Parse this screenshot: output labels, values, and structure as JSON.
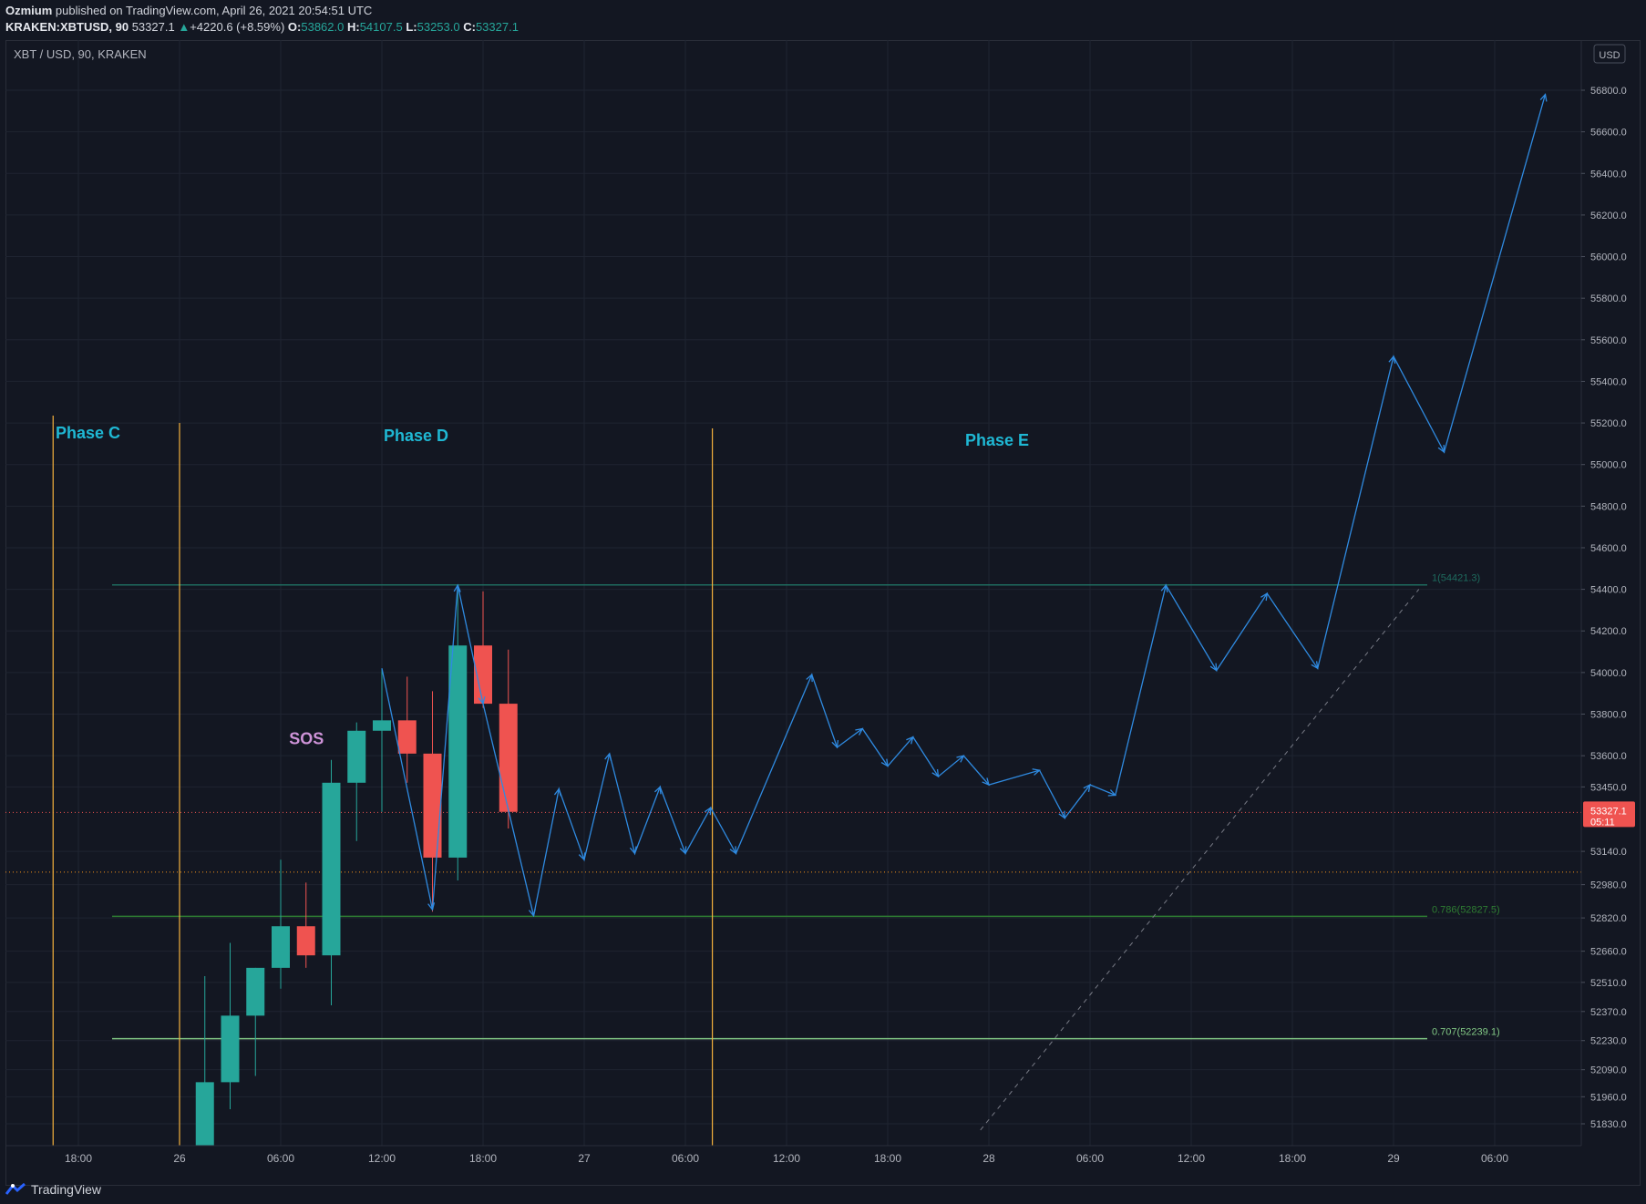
{
  "header": {
    "author": "Ozmium",
    "published_text": "published on TradingView.com, April 26, 2021 20:54:51 UTC",
    "symbol": "KRAKEN:XBTUSD, 90",
    "last": "53327.1",
    "change_arrow": "▲",
    "change": "+4220.6 (+8.59%)",
    "o_label": "O:",
    "o_value": "53862.0",
    "h_label": "H:",
    "h_value": "54107.5",
    "l_label": "L:",
    "l_value": "53253.0",
    "c_label": "C:",
    "c_value": "53327.1"
  },
  "footer": {
    "brand": "TradingView",
    "logo_icon": "tradingview-logo-icon"
  },
  "colors": {
    "background": "#131722",
    "grid": "#1f2431",
    "up": "#26a69a",
    "down": "#ef5350",
    "projection": "#2f8ae0",
    "phase_line": "#f5b13d",
    "phase_text": "#1fb8d4",
    "sos_text": "#ce93d8",
    "fib_1": "#1e6b5e",
    "fib_786": "#2e7d32",
    "fib_707": "#81c784",
    "price_tag": "#ef5350",
    "axis_text": "#b2b5be"
  },
  "chart_data": {
    "type": "candlestick",
    "title": "XBT / USD, 90, KRAKEN",
    "currency": "USD",
    "y_axis_ticks": [
      "56800.0",
      "56600.0",
      "56400.0",
      "56200.0",
      "56000.0",
      "55800.0",
      "55600.0",
      "55400.0",
      "55200.0",
      "55000.0",
      "54800.0",
      "54600.0",
      "54400.0",
      "54200.0",
      "54000.0",
      "53800.0",
      "53600.0",
      "53450.0",
      "53140.0",
      "52980.0",
      "52820.0",
      "52660.0",
      "52510.0",
      "52370.0",
      "52230.0",
      "52090.0",
      "51960.0",
      "51830.0"
    ],
    "x_axis_ticks": [
      {
        "label": "18:00",
        "t": -6
      },
      {
        "label": "26",
        "t": 0
      },
      {
        "label": "06:00",
        "t": 6
      },
      {
        "label": "12:00",
        "t": 12
      },
      {
        "label": "18:00",
        "t": 18
      },
      {
        "label": "27",
        "t": 24
      },
      {
        "label": "06:00",
        "t": 30
      },
      {
        "label": "12:00",
        "t": 36
      },
      {
        "label": "18:00",
        "t": 42
      },
      {
        "label": "28",
        "t": 48
      },
      {
        "label": "06:00",
        "t": 54
      },
      {
        "label": "12:00",
        "t": 60
      },
      {
        "label": "18:00",
        "t": 66
      },
      {
        "label": "29",
        "t": 72
      },
      {
        "label": "06:00",
        "t": 78
      }
    ],
    "candles": [
      {
        "t": 1.5,
        "o": 51650,
        "h": 52540,
        "l": 51600,
        "c": 52030
      },
      {
        "t": 3.0,
        "o": 52030,
        "h": 52700,
        "l": 51900,
        "c": 52350
      },
      {
        "t": 4.5,
        "o": 52350,
        "h": 52580,
        "l": 52060,
        "c": 52580
      },
      {
        "t": 6.0,
        "o": 52580,
        "h": 53100,
        "l": 52480,
        "c": 52780
      },
      {
        "t": 7.5,
        "o": 52780,
        "h": 52990,
        "l": 52580,
        "c": 52640
      },
      {
        "t": 9.0,
        "o": 52640,
        "h": 53580,
        "l": 52400,
        "c": 53470
      },
      {
        "t": 10.5,
        "o": 53470,
        "h": 53760,
        "l": 53190,
        "c": 53720
      },
      {
        "t": 12.0,
        "o": 53720,
        "h": 54020,
        "l": 53330,
        "c": 53770
      },
      {
        "t": 13.5,
        "o": 53770,
        "h": 53980,
        "l": 53470,
        "c": 53610
      },
      {
        "t": 15.0,
        "o": 53610,
        "h": 53910,
        "l": 52850,
        "c": 53110
      },
      {
        "t": 16.5,
        "o": 53110,
        "h": 54420,
        "l": 53000,
        "c": 54130
      },
      {
        "t": 18.0,
        "o": 54130,
        "h": 54390,
        "l": 53830,
        "c": 53850
      },
      {
        "t": 19.5,
        "o": 53850,
        "h": 54110,
        "l": 53250,
        "c": 53330
      }
    ],
    "projection_path": [
      {
        "t": 12.0,
        "p": 54020
      },
      {
        "t": 15.0,
        "p": 52860
      },
      {
        "t": 16.5,
        "p": 54420
      },
      {
        "t": 18.0,
        "p": 53850
      },
      {
        "t": 21.0,
        "p": 52830
      },
      {
        "t": 22.5,
        "p": 53440
      },
      {
        "t": 24.0,
        "p": 53100
      },
      {
        "t": 25.5,
        "p": 53610
      },
      {
        "t": 27.0,
        "p": 53130
      },
      {
        "t": 28.5,
        "p": 53450
      },
      {
        "t": 30.0,
        "p": 53130
      },
      {
        "t": 31.5,
        "p": 53350
      },
      {
        "t": 33.0,
        "p": 53130
      },
      {
        "t": 37.5,
        "p": 53990
      },
      {
        "t": 39.0,
        "p": 53640
      },
      {
        "t": 40.5,
        "p": 53730
      },
      {
        "t": 42.0,
        "p": 53550
      },
      {
        "t": 43.5,
        "p": 53690
      },
      {
        "t": 45.0,
        "p": 53500
      },
      {
        "t": 46.5,
        "p": 53600
      },
      {
        "t": 48.0,
        "p": 53460
      },
      {
        "t": 51.0,
        "p": 53530
      },
      {
        "t": 52.5,
        "p": 53300
      },
      {
        "t": 54.0,
        "p": 53460
      },
      {
        "t": 55.5,
        "p": 53410
      },
      {
        "t": 58.5,
        "p": 54420
      },
      {
        "t": 61.5,
        "p": 54010
      },
      {
        "t": 64.5,
        "p": 54380
      },
      {
        "t": 67.5,
        "p": 54020
      },
      {
        "t": 72.0,
        "p": 55520
      },
      {
        "t": 75.0,
        "p": 55060
      },
      {
        "t": 81.0,
        "p": 56780
      }
    ],
    "phase_markers": [
      {
        "label": "Phase C",
        "t": -7.5
      },
      {
        "label": "Phase D",
        "t": 0
      },
      {
        "label": "Phase E",
        "t": 31.6
      }
    ],
    "annotations": [
      {
        "label": "SOS",
        "t": 7.2,
        "p": 53760
      }
    ],
    "fib_levels": [
      {
        "ratio": 1,
        "price": 54421.3,
        "label": "1(54421.3)"
      },
      {
        "ratio": 0.786,
        "price": 52827.5,
        "label": "0.786(52827.5)"
      },
      {
        "ratio": 0.707,
        "price": 52239.1,
        "label": "0.707(52239.1)"
      }
    ],
    "fib_trend_line": [
      {
        "t": 47.5,
        "p": 51800
      },
      {
        "t": 73.5,
        "p": 54400
      }
    ],
    "last_price": {
      "value": "53327.1",
      "countdown": "05:11"
    },
    "reference_line_price": 53040,
    "grid": true
  }
}
